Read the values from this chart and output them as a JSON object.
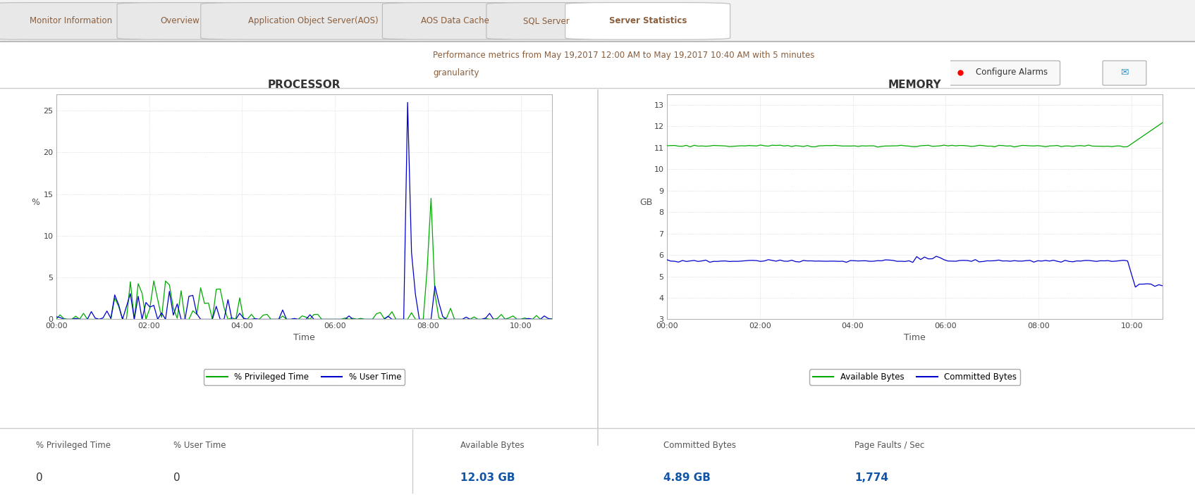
{
  "tabs": [
    "Monitor Information",
    "Overview",
    "Application Object Server(AOS)",
    "AOS Data Cache",
    "SQL Server",
    "Server Statistics"
  ],
  "active_tab": "Server Statistics",
  "subtitle_line1": "Performance metrics from May 19,2017 12:00 AM to May 19,2017 10:40 AM with 5 minutes",
  "subtitle_line2": "granularity",
  "processor_title": "PROCESSOR",
  "memory_title": "MEMORY",
  "proc_ylabel": "%",
  "mem_ylabel": "GB",
  "time_label": "Time",
  "proc_xticks": [
    "00:00",
    "02:00",
    "04:00",
    "06:00",
    "08:00",
    "10:00"
  ],
  "proc_yticks": [
    0,
    5,
    10,
    15,
    20,
    25
  ],
  "mem_xticks": [
    "00:00",
    "02:00",
    "04:00",
    "06:00",
    "08:00",
    "10:00"
  ],
  "mem_yticks": [
    3,
    4,
    5,
    6,
    7,
    8,
    9,
    10,
    11,
    12,
    13
  ],
  "proc_legend": [
    "% Privileged Time",
    "% User Time"
  ],
  "mem_legend": [
    "Available Bytes",
    "Committed Bytes"
  ],
  "proc_green_color": "#00aa00",
  "proc_blue_color": "#0000cc",
  "mem_green_color": "#00aa00",
  "mem_blue_color": "#0000cc",
  "bg_color": "#ffffff",
  "grid_color": "#cccccc",
  "tab_text_color": "#8B5E3C",
  "subtitle_color": "#8B5E3C",
  "stats_left_labels": [
    "% Privileged Time",
    "% User Time"
  ],
  "stats_left_values": [
    "0",
    "0"
  ],
  "stats_right_labels": [
    "Available Bytes",
    "Committed Bytes",
    "Page Faults / Sec"
  ],
  "stats_right_values": [
    "12.03 GB",
    "4.89 GB",
    "1,774"
  ],
  "configure_alarm_text": "Configure Alarms",
  "proc_ylim": [
    0,
    27
  ],
  "mem_ylim": [
    3,
    13.5
  ],
  "proc_xlim": [
    0,
    10.667
  ],
  "mem_xlim": [
    0,
    10.667
  ]
}
